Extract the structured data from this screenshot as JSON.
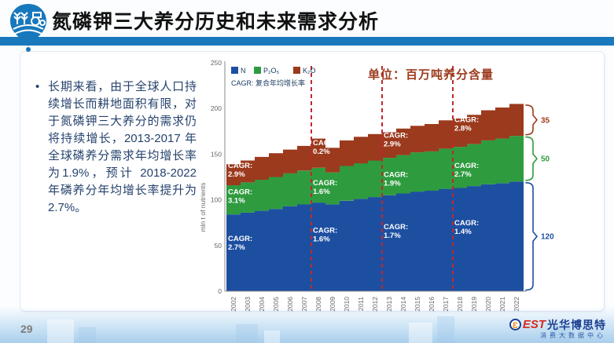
{
  "slide": {
    "title": "氮磷钾三大养分历史和未来需求分析",
    "bullet_marker": "•",
    "bullet_text": "长期来看，由于全球人口持续增长而耕地面积有限，对于氮磷钾三大养分的需求仍将持续增长，2013-2017 年全球磷养分需求年均增长率为1.9%，预计 2018-2022 年磷养分年均增长率提升为2.7%。",
    "unit_note": "单位：百万吨养分含量",
    "page_number": "29",
    "footer_logo": {
      "circle_glyph": "Ɛ",
      "brand_latin": "EST",
      "brand_cn": "光华博思特",
      "sub": "消费大数据中心"
    }
  },
  "colors": {
    "header_bar": "#1a78bc",
    "n_blue": "#1d4fa1",
    "p_green": "#2e9b3f",
    "k_red": "#9c3a1d",
    "dashed_line": "#c1272d",
    "axis_gray": "#8a8a8a",
    "tick_text": "#666666",
    "legend_text": "#17375e",
    "cagr_label_text": "#ffffff"
  },
  "chart_data": {
    "type": "bar",
    "stacked": true,
    "title": "",
    "xlabel": "",
    "ylabel": "mln t of nutrients",
    "ylim": [
      0,
      250
    ],
    "yticks": [
      0,
      50,
      100,
      150,
      200,
      250
    ],
    "grid": false,
    "legend_position": "top-left",
    "legend_note": "CAGR: 复合年均增长率",
    "categories": [
      "2002",
      "2003",
      "2004",
      "2005",
      "2006",
      "2007",
      "2008",
      "2009",
      "2010",
      "2011",
      "2012",
      "2013",
      "2014",
      "2015",
      "2016",
      "2017",
      "2018",
      "2019",
      "2020",
      "2021",
      "2022"
    ],
    "series": [
      {
        "name": "N",
        "color": "#1d4fa1",
        "values": [
          84,
          86,
          88,
          90,
          93,
          95,
          97,
          95,
          99,
          101,
          103,
          105,
          107,
          109,
          110,
          112,
          113,
          115,
          117,
          118,
          120
        ]
      },
      {
        "name": "P₂O₅",
        "color": "#2e9b3f",
        "values": [
          32,
          33,
          34,
          35,
          36,
          37,
          38,
          35,
          38,
          39,
          40,
          41,
          42,
          43,
          43,
          44,
          45,
          46,
          48,
          49,
          50
        ]
      },
      {
        "name": "K₂O",
        "color": "#9c3a1d",
        "values": [
          23,
          24,
          25,
          26,
          26,
          27,
          32,
          27,
          28,
          29,
          29,
          28,
          29,
          29,
          30,
          31,
          31,
          32,
          33,
          34,
          35
        ]
      }
    ],
    "period_dividers_after_year": [
      "2007",
      "2012",
      "2017"
    ],
    "cagr_labels": [
      {
        "series": "N",
        "period": "2002-2007",
        "line1": "CAGR:",
        "line2": "2.7%",
        "year": "2002",
        "anchor_value": 55
      },
      {
        "series": "P₂O₅",
        "period": "2002-2007",
        "line1": "CAGR:",
        "line2": "3.1%",
        "year": "2002",
        "anchor_value": 106
      },
      {
        "series": "K₂O",
        "period": "2002-2007",
        "line1": "CAGR:",
        "line2": "2.9%",
        "year": "2002",
        "anchor_value": 135
      },
      {
        "series": "N",
        "period": "2008-2012",
        "line1": "CAGR:",
        "line2": "1.6%",
        "year": "2008",
        "anchor_value": 64
      },
      {
        "series": "P₂O₅",
        "period": "2008-2012",
        "line1": "CAGR:",
        "line2": "1.6%",
        "year": "2008",
        "anchor_value": 116
      },
      {
        "series": "K₂O",
        "period": "2008-2012",
        "line1": "CAGR:",
        "line2": "0.2%",
        "year": "2008",
        "anchor_value": 160
      },
      {
        "series": "N",
        "period": "2013-2017",
        "line1": "CAGR:",
        "line2": "1.7%",
        "year": "2013",
        "anchor_value": 68
      },
      {
        "series": "P₂O₅",
        "period": "2013-2017",
        "line1": "CAGR:",
        "line2": "1.9%",
        "year": "2013",
        "anchor_value": 125
      },
      {
        "series": "K₂O",
        "period": "2013-2017",
        "line1": "CAGR:",
        "line2": "2.9%",
        "year": "2013",
        "anchor_value": 168
      },
      {
        "series": "N",
        "period": "2018-2022",
        "line1": "CAGR:",
        "line2": "1.4%",
        "year": "2018",
        "anchor_value": 72
      },
      {
        "series": "P₂O₅",
        "period": "2018-2022",
        "line1": "CAGR:",
        "line2": "2.7%",
        "year": "2018",
        "anchor_value": 135
      },
      {
        "series": "K₂O",
        "period": "2018-2022",
        "line1": "CAGR:",
        "line2": "2.8%",
        "year": "2018",
        "anchor_value": 185
      }
    ],
    "end_brackets": [
      {
        "series": "K₂O",
        "label": "35",
        "from": 170,
        "to": 205,
        "color": "#9c3a1d"
      },
      {
        "series": "P₂O₅",
        "label": "50",
        "from": 120,
        "to": 170,
        "color": "#2e9b3f"
      },
      {
        "series": "N",
        "label": "120",
        "from": 0,
        "to": 120,
        "color": "#1d4fa1"
      }
    ]
  }
}
